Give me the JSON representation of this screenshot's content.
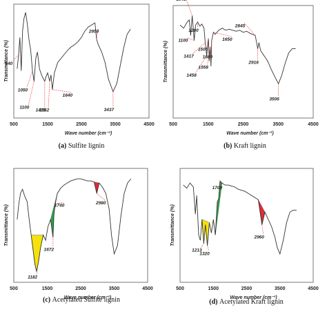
{
  "chart_data": [
    {
      "type": "line",
      "title": "",
      "caption_letter": "(a)",
      "caption_text": "Sulfite lignin",
      "xlabel": "Wave number (cm⁻¹)",
      "ylabel": "Transmittance (%)",
      "xlim": [
        500,
        4500
      ],
      "xticks": [
        "500",
        "1500",
        "2500",
        "3500",
        "4500"
      ],
      "grid": false,
      "series": [
        {
          "x": [
            600,
            640,
            680,
            720,
            760,
            800,
            850,
            900,
            950,
            1000,
            1050,
            1100,
            1150,
            1200,
            1260,
            1320,
            1380,
            1415,
            1450,
            1500,
            1562,
            1600,
            1640,
            1700,
            1800,
            1900,
            2000,
            2100,
            2200,
            2300,
            2400,
            2500,
            2600,
            2700,
            2800,
            2900,
            2950,
            3000,
            3100,
            3200,
            3300,
            3437,
            3550,
            3650,
            3750,
            3850,
            3950
          ],
          "y": [
            42,
            55,
            72,
            40,
            78,
            90,
            96,
            85,
            70,
            60,
            40,
            30,
            52,
            58,
            42,
            36,
            32,
            30,
            34,
            38,
            30,
            36,
            22,
            38,
            48,
            52,
            56,
            60,
            63,
            65,
            68,
            72,
            78,
            82,
            84,
            86,
            70,
            65,
            58,
            48,
            32,
            20,
            28,
            45,
            62,
            75,
            80
          ]
        }
      ],
      "annotations": [
        {
          "label": "640",
          "x": 640
        },
        {
          "label": "1050",
          "x": 1050
        },
        {
          "label": "1100",
          "x": 1100
        },
        {
          "label": "1415",
          "x": 1415
        },
        {
          "label": "1562",
          "x": 1562
        },
        {
          "label": "1640",
          "x": 1640
        },
        {
          "label": "2950",
          "x": 2950
        },
        {
          "label": "3437",
          "x": 3437
        }
      ]
    },
    {
      "type": "line",
      "title": "",
      "caption_letter": "(b)",
      "caption_text": "Kraft lignin",
      "xlabel": "Wave number (cm⁻¹)",
      "ylabel": "Transmittance (%)",
      "xlim": [
        500,
        4500
      ],
      "xticks": [
        "500",
        "1500",
        "2500",
        "3500",
        "4500"
      ],
      "grid": false,
      "series": [
        {
          "x": [
            700,
            800,
            900,
            960,
            1000,
            1043,
            1080,
            1100,
            1140,
            1200,
            1260,
            1320,
            1380,
            1417,
            1458,
            1506,
            1530,
            1558,
            1580,
            1600,
            1650,
            1700,
            1800,
            1900,
            2000,
            2100,
            2200,
            2300,
            2400,
            2500,
            2600,
            2700,
            2845,
            2916,
            2950,
            3000,
            3100,
            3200,
            3300,
            3400,
            3506,
            3600,
            3700,
            3800,
            3900,
            4000
          ],
          "y": [
            85,
            82,
            88,
            90,
            75,
            94,
            80,
            70,
            85,
            88,
            84,
            86,
            82,
            68,
            55,
            72,
            50,
            64,
            45,
            70,
            78,
            76,
            80,
            82,
            80,
            81,
            80,
            79,
            80,
            78,
            79,
            77,
            75,
            62,
            68,
            60,
            55,
            50,
            42,
            35,
            28,
            36,
            48,
            58,
            62,
            62
          ]
        }
      ],
      "annotations": [
        {
          "label": "1043",
          "x": 1043
        },
        {
          "label": "1100",
          "x": 1100
        },
        {
          "label": "1200",
          "x": 1200
        },
        {
          "label": "1417",
          "x": 1417
        },
        {
          "label": "1458",
          "x": 1458
        },
        {
          "label": "1506",
          "x": 1506
        },
        {
          "label": "1558",
          "x": 1558
        },
        {
          "label": "1600",
          "x": 1600
        },
        {
          "label": "1650",
          "x": 1650
        },
        {
          "label": "2845",
          "x": 2845
        },
        {
          "label": "2916",
          "x": 2916
        },
        {
          "label": "3506",
          "x": 3506
        }
      ]
    },
    {
      "type": "line",
      "title": "",
      "caption_letter": "(c)",
      "caption_text": "Acetylated Sulfite lignin",
      "xlabel": "Wave number (cm⁻¹)",
      "ylabel": "Transmittance (%)",
      "xlim": [
        500,
        4500
      ],
      "xticks": [
        "500",
        "1500",
        "2500",
        "3500",
        "4500"
      ],
      "grid": false,
      "series": [
        {
          "x": [
            600,
            650,
            700,
            760,
            820,
            900,
            960,
            1020,
            1080,
            1130,
            1182,
            1240,
            1300,
            1380,
            1450,
            1520,
            1600,
            1672,
            1700,
            1740,
            1800,
            1900,
            2000,
            2100,
            2200,
            2300,
            2400,
            2500,
            2600,
            2700,
            2800,
            2900,
            2980,
            3050,
            3150,
            3250,
            3350,
            3420,
            3500,
            3600,
            3700,
            3800,
            3900,
            4000
          ],
          "y": [
            55,
            70,
            80,
            84,
            78,
            72,
            55,
            40,
            25,
            12,
            5,
            15,
            28,
            40,
            35,
            48,
            55,
            38,
            60,
            70,
            80,
            85,
            88,
            90,
            92,
            93,
            94,
            94,
            93,
            92,
            92,
            91,
            80,
            90,
            86,
            80,
            65,
            40,
            22,
            30,
            58,
            80,
            90,
            94
          ]
        }
      ],
      "annotations": [
        {
          "label": "1182",
          "x": 1182
        },
        {
          "label": "1672",
          "x": 1672
        },
        {
          "label": "1740",
          "x": 1740
        },
        {
          "label": "2980",
          "x": 2980
        }
      ],
      "highlights": [
        {
          "from": 1000,
          "to": 1380,
          "color": "#f5e100"
        },
        {
          "from": 1600,
          "to": 1800,
          "color": "#1aa33a"
        },
        {
          "from": 2900,
          "to": 3050,
          "color": "#e0202a"
        }
      ]
    },
    {
      "type": "line",
      "title": "",
      "caption_letter": "(d)",
      "caption_text": "Acetylated Kraft lignin",
      "xlabel": "Wave number (cm⁻¹)",
      "ylabel": "Transmittance (%)",
      "xlim": [
        500,
        4500
      ],
      "xticks": [
        "500",
        "1500",
        "2500",
        "3500",
        "4500"
      ],
      "grid": false,
      "series": [
        {
          "x": [
            600,
            700,
            800,
            900,
            960,
            1000,
            1060,
            1110,
            1160,
            1213,
            1260,
            1320,
            1380,
            1440,
            1500,
            1560,
            1620,
            1660,
            1700,
            1760,
            1850,
            1950,
            2050,
            2150,
            2250,
            2350,
            2450,
            2550,
            2650,
            2750,
            2850,
            2960,
            3050,
            3150,
            3250,
            3350,
            3420,
            3500,
            3600,
            3700,
            3800,
            3900,
            4000
          ],
          "y": [
            88,
            85,
            90,
            86,
            60,
            78,
            40,
            35,
            55,
            32,
            50,
            30,
            52,
            42,
            55,
            40,
            72,
            75,
            92,
            90,
            88,
            88,
            87,
            86,
            84,
            83,
            82,
            80,
            78,
            76,
            74,
            50,
            62,
            55,
            48,
            38,
            28,
            22,
            35,
            52,
            62,
            64,
            64
          ]
        }
      ],
      "annotations": [
        {
          "label": "1213",
          "x": 1213
        },
        {
          "label": "1320",
          "x": 1320
        },
        {
          "label": "1700",
          "x": 1700
        },
        {
          "label": "2960",
          "x": 2960
        }
      ],
      "highlights": [
        {
          "from": 1160,
          "to": 1400,
          "color": "#f5e100"
        },
        {
          "from": 1560,
          "to": 1760,
          "color": "#1aa33a"
        },
        {
          "from": 2850,
          "to": 3050,
          "color": "#e0202a"
        }
      ]
    }
  ]
}
